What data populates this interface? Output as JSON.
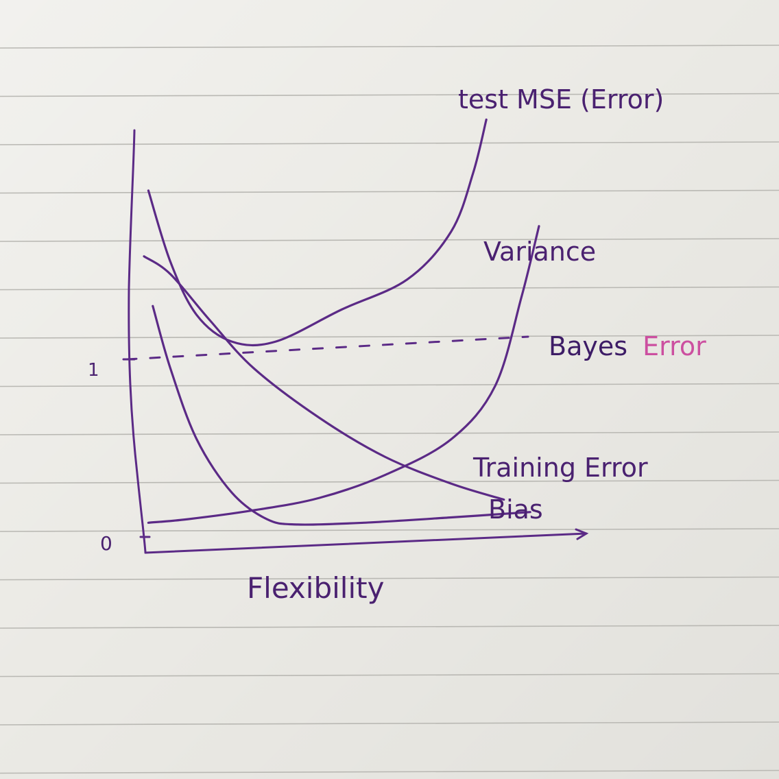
{
  "chart_data": {
    "type": "line",
    "xlabel": "Flexibility",
    "ylabel": "",
    "y_ticks": [
      "0",
      "1"
    ],
    "xlim": [
      0,
      10
    ],
    "ylim": [
      0,
      2.2
    ],
    "bayes_level": 1.0,
    "bayes_label_prefix": "Bayes",
    "bayes_label_suffix": "Error",
    "series": [
      {
        "name": "test MSE (Error)",
        "x": [
          0.1,
          0.6,
          1.2,
          2.0,
          3.0,
          4.5,
          6.0,
          7.0,
          7.5,
          7.8
        ],
        "y": [
          1.95,
          1.55,
          1.25,
          1.1,
          1.1,
          1.28,
          1.45,
          1.72,
          2.05,
          2.35
        ]
      },
      {
        "name": "Variance",
        "x": [
          0.1,
          1.0,
          2.5,
          4.0,
          5.5,
          7.0,
          8.0,
          8.6,
          9.0
        ],
        "y": [
          0.08,
          0.1,
          0.15,
          0.22,
          0.35,
          0.55,
          0.85,
          1.35,
          1.75
        ]
      },
      {
        "name": "Training Error",
        "x": [
          0.0,
          0.6,
          1.5,
          2.5,
          4.0,
          5.5,
          7.0,
          8.2
        ],
        "y": [
          1.58,
          1.48,
          1.22,
          0.95,
          0.67,
          0.45,
          0.3,
          0.21
        ]
      },
      {
        "name": "Bias",
        "x": [
          0.2,
          0.6,
          1.2,
          2.0,
          2.8,
          3.5,
          5.0,
          7.0,
          8.8
        ],
        "y": [
          1.3,
          0.95,
          0.55,
          0.25,
          0.1,
          0.07,
          0.08,
          0.11,
          0.14
        ]
      }
    ]
  }
}
